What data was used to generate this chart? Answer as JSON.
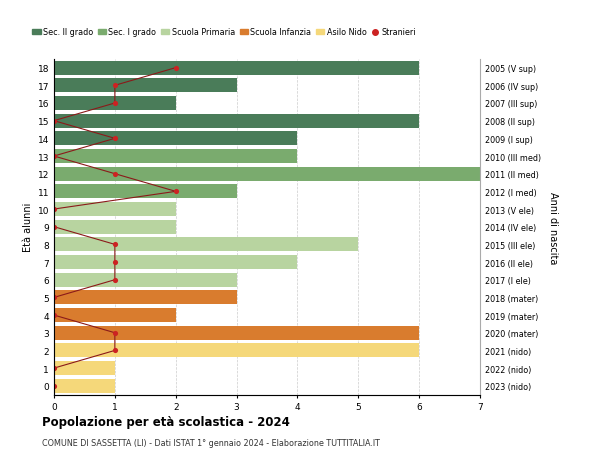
{
  "ages": [
    18,
    17,
    16,
    15,
    14,
    13,
    12,
    11,
    10,
    9,
    8,
    7,
    6,
    5,
    4,
    3,
    2,
    1,
    0
  ],
  "years": [
    "2005 (V sup)",
    "2006 (IV sup)",
    "2007 (III sup)",
    "2008 (II sup)",
    "2009 (I sup)",
    "2010 (III med)",
    "2011 (II med)",
    "2012 (I med)",
    "2013 (V ele)",
    "2014 (IV ele)",
    "2015 (III ele)",
    "2016 (II ele)",
    "2017 (I ele)",
    "2018 (mater)",
    "2019 (mater)",
    "2020 (mater)",
    "2021 (nido)",
    "2022 (nido)",
    "2023 (nido)"
  ],
  "bar_values": [
    6,
    3,
    2,
    6,
    4,
    4,
    7,
    3,
    2,
    2,
    5,
    4,
    3,
    3,
    2,
    6,
    6,
    1,
    1
  ],
  "bar_colors": [
    "#4a7c59",
    "#4a7c59",
    "#4a7c59",
    "#4a7c59",
    "#4a7c59",
    "#7aab6e",
    "#7aab6e",
    "#7aab6e",
    "#b8d4a0",
    "#b8d4a0",
    "#b8d4a0",
    "#b8d4a0",
    "#b8d4a0",
    "#d97c2e",
    "#d97c2e",
    "#d97c2e",
    "#f5d87a",
    "#f5d87a",
    "#f5d87a"
  ],
  "stranieri_values": [
    2,
    1,
    1,
    0,
    1,
    0,
    1,
    2,
    0,
    0,
    1,
    1,
    1,
    0,
    0,
    1,
    1,
    0,
    0
  ],
  "legend_labels": [
    "Sec. II grado",
    "Sec. I grado",
    "Scuola Primaria",
    "Scuola Infanzia",
    "Asilo Nido",
    "Stranieri"
  ],
  "legend_colors": [
    "#4a7c59",
    "#7aab6e",
    "#b8d4a0",
    "#d97c2e",
    "#f5d87a",
    "#b22222"
  ],
  "ylabel_left": "Età alunni",
  "ylabel_right": "Anni di nascita",
  "title": "Popolazione per età scolastica - 2024",
  "subtitle": "COMUNE DI SASSETTA (LI) - Dati ISTAT 1° gennaio 2024 - Elaborazione TUTTITALIA.IT",
  "xlim": [
    0,
    7
  ],
  "background_color": "#ffffff",
  "grid_color": "#cccccc"
}
